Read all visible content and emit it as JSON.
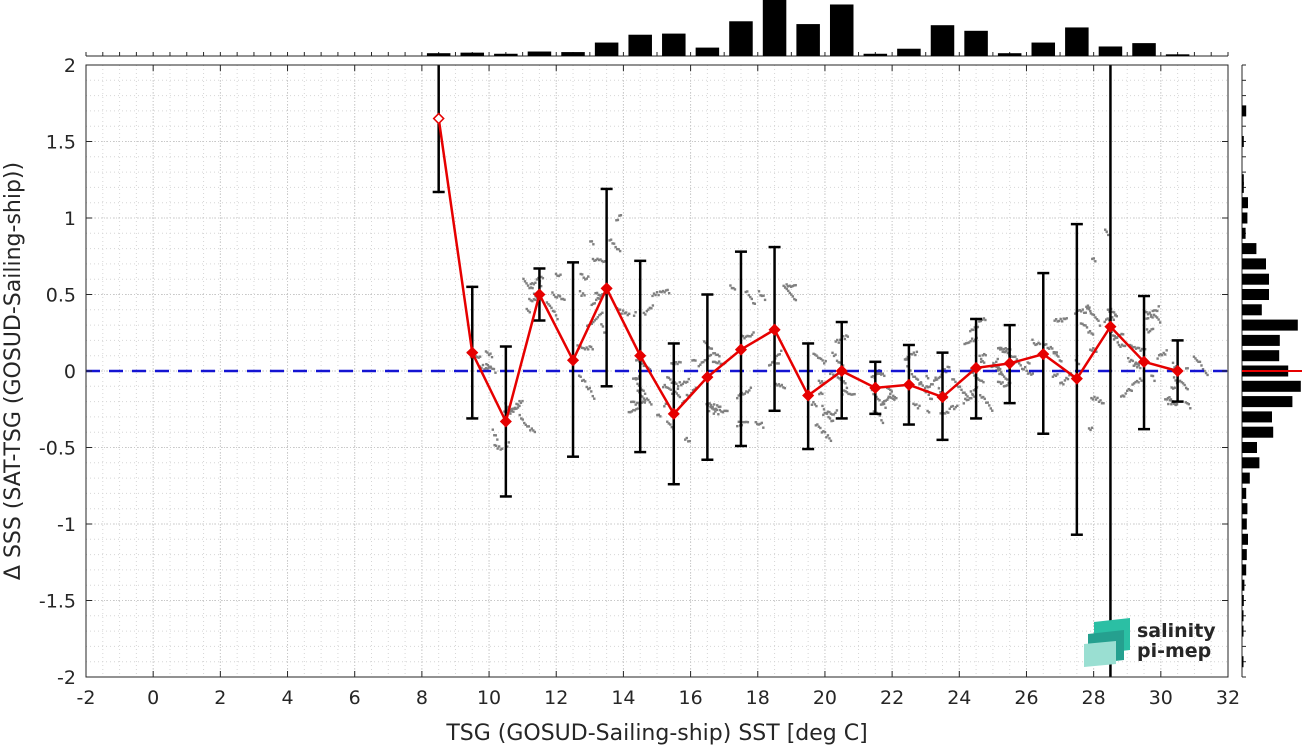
{
  "chart_data": {
    "type": "scatter",
    "title": "",
    "xlabel": "TSG (GOSUD-Sailing-ship) SST [deg C]",
    "ylabel": "Δ SSS (SAT-TSG (GOSUD-Sailing-ship))",
    "xlim": [
      -2,
      32
    ],
    "ylim": [
      -2,
      2
    ],
    "xticks": [
      "-2",
      "0",
      "2",
      "4",
      "6",
      "8",
      "10",
      "12",
      "14",
      "16",
      "18",
      "20",
      "22",
      "24",
      "26",
      "28",
      "30",
      "32"
    ],
    "yticks": [
      "2",
      "1.5",
      "1",
      "0.5",
      "0",
      "-0.5",
      "-1",
      "-1.5",
      "-2"
    ],
    "grid": true,
    "zero_line": {
      "y": 0,
      "color": "#1414d2",
      "style": "dashed"
    },
    "binned_mean": {
      "color": "#e60000",
      "x": [
        8.5,
        9.5,
        10.5,
        11.5,
        12.5,
        13.5,
        14.5,
        15.5,
        16.5,
        17.5,
        18.5,
        19.5,
        20.5,
        21.5,
        22.5,
        23.5,
        24.5,
        25.5,
        26.5,
        27.5,
        28.5,
        29.5,
        30.5
      ],
      "mean": [
        1.65,
        0.12,
        -0.33,
        0.5,
        0.07,
        0.54,
        0.1,
        -0.28,
        -0.04,
        0.14,
        0.27,
        -0.16,
        0.0,
        -0.11,
        -0.09,
        -0.17,
        0.02,
        0.05,
        0.11,
        -0.05,
        0.29,
        0.06,
        0.0
      ],
      "err_low": [
        1.17,
        -0.31,
        -0.82,
        0.33,
        -0.56,
        -0.1,
        -0.53,
        -0.74,
        -0.58,
        -0.49,
        -0.26,
        -0.51,
        -0.31,
        -0.28,
        -0.35,
        -0.45,
        -0.31,
        -0.21,
        -0.41,
        -1.07,
        -2.0,
        -0.38,
        -0.2
      ],
      "err_high": [
        2.0,
        0.55,
        0.16,
        0.67,
        0.71,
        1.19,
        0.72,
        0.18,
        0.5,
        0.78,
        0.81,
        0.18,
        0.32,
        0.06,
        0.17,
        0.12,
        0.34,
        0.3,
        0.64,
        0.96,
        2.0,
        0.49,
        0.2
      ]
    },
    "scatter_color": "#808080",
    "top_histogram": {
      "color": "#000000",
      "bin_centers": [
        8.5,
        9.5,
        10.5,
        11.5,
        12.5,
        13.5,
        14.5,
        15.5,
        16.5,
        17.5,
        18.5,
        19.5,
        20.5,
        21.5,
        22.5,
        23.5,
        24.5,
        25.5,
        26.5,
        27.5,
        28.5,
        29.5,
        30.5
      ],
      "relative_counts": [
        0.05,
        0.06,
        0.04,
        0.08,
        0.07,
        0.24,
        0.38,
        0.4,
        0.15,
        0.62,
        1.0,
        0.57,
        0.92,
        0.04,
        0.13,
        0.55,
        0.45,
        0.05,
        0.24,
        0.51,
        0.17,
        0.23,
        0.03
      ]
    },
    "right_histogram": {
      "color": "#000000",
      "bin_centers": [
        1.7,
        1.5,
        1.25,
        1.2,
        1.1,
        1.0,
        0.9,
        0.8,
        0.7,
        0.6,
        0.5,
        0.4,
        0.3,
        0.2,
        0.1,
        0.0,
        -0.1,
        -0.2,
        -0.3,
        -0.4,
        -0.5,
        -0.6,
        -0.7,
        -0.8,
        -0.9,
        -1.0,
        -1.1,
        -1.2,
        -1.3,
        -1.4,
        -1.5,
        -1.6,
        -1.7,
        -1.9
      ],
      "relative_counts": [
        0.07,
        0.03,
        0.03,
        0.03,
        0.1,
        0.09,
        0.06,
        0.24,
        0.4,
        0.45,
        0.45,
        0.33,
        0.93,
        0.63,
        0.62,
        0.77,
        0.98,
        0.84,
        0.5,
        0.52,
        0.25,
        0.29,
        0.13,
        0.07,
        0.09,
        0.08,
        0.1,
        0.08,
        0.07,
        0.04,
        0.03,
        0.02,
        0.02,
        0.02
      ]
    },
    "right_histogram_mean_marker": {
      "y": 0.0,
      "color": "#e60000"
    }
  },
  "logo": {
    "line1": "salinity",
    "line2": "pi-mep",
    "color_light": "#2bbfa4",
    "color_dark": "#1e5f60"
  }
}
